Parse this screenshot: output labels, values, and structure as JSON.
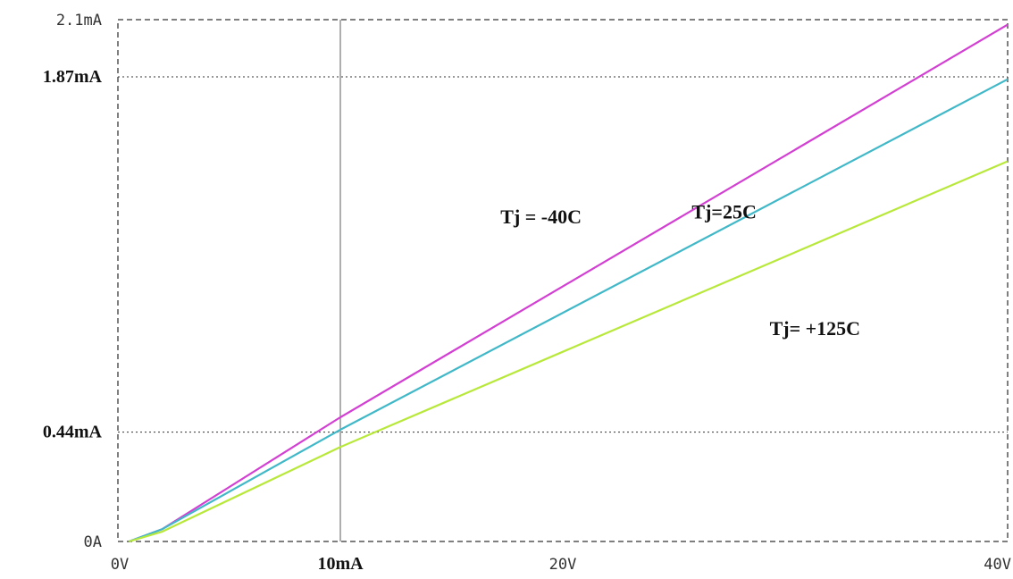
{
  "chart_data": {
    "type": "line",
    "title": "",
    "xlabel": "",
    "ylabel": "",
    "x_units": "V",
    "y_units": "mA",
    "xlim": [
      0,
      40
    ],
    "ylim": [
      0,
      2.1
    ],
    "x_ticks": [
      {
        "value": 0,
        "label": "0V",
        "style": "mono"
      },
      {
        "value": 10,
        "label": "10mA",
        "style": "serif"
      },
      {
        "value": 20,
        "label": "20V",
        "style": "mono"
      },
      {
        "value": 40,
        "label": "40V",
        "style": "mono"
      }
    ],
    "y_ticks": [
      {
        "value": 0,
        "label": "0A",
        "style": "mono"
      },
      {
        "value": 0.44,
        "label": "0.44mA",
        "style": "serif"
      },
      {
        "value": 1.87,
        "label": "1.87mA",
        "style": "serif"
      },
      {
        "value": 2.1,
        "label": "2.1mA",
        "style": "mono"
      }
    ],
    "reference_lines": {
      "horizontal": [
        0.44,
        1.87
      ],
      "vertical": [
        10
      ]
    },
    "grid": false,
    "series": [
      {
        "name": "Tj = -40C",
        "color": "#d23fd2",
        "x": [
          0.5,
          2,
          10,
          40
        ],
        "y": [
          0,
          0.05,
          0.5,
          2.08
        ]
      },
      {
        "name": "Tj=25C",
        "color": "#40b8c8",
        "x": [
          0.5,
          2,
          10,
          40
        ],
        "y": [
          0,
          0.05,
          0.45,
          1.86
        ]
      },
      {
        "name": "Tj= +125C",
        "color": "#b8e83a",
        "x": [
          0.5,
          2,
          10,
          40
        ],
        "y": [
          0,
          0.04,
          0.38,
          1.53
        ]
      }
    ],
    "annotations": [
      {
        "text": "Tj = -40C",
        "series": 0,
        "x": 17.2,
        "y": 1.28
      },
      {
        "text": "Tj=25C",
        "series": 1,
        "x": 25.8,
        "y": 1.3
      },
      {
        "text": "Tj= +125C",
        "series": 2,
        "x": 29.3,
        "y": 0.83
      }
    ]
  }
}
